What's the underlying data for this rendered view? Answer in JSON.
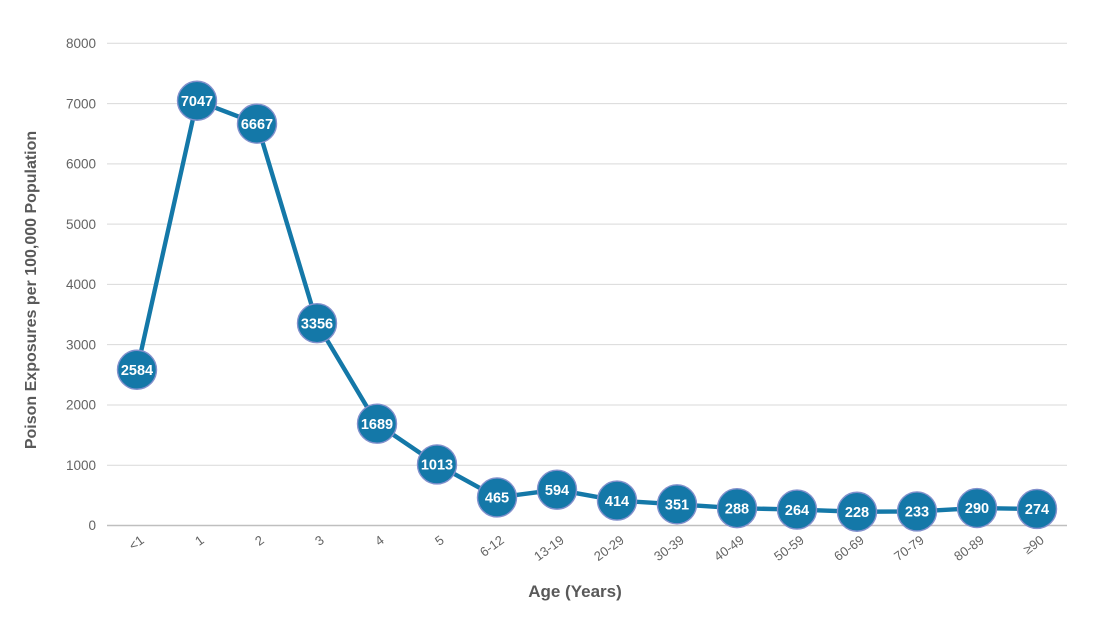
{
  "chart_data": {
    "type": "line",
    "title": "",
    "categories": [
      "<1",
      "1",
      "2",
      "3",
      "4",
      "5",
      "6-12",
      "13-19",
      "20-29",
      "30-39",
      "40-49",
      "50-59",
      "60-69",
      "70-79",
      "80-89",
      "≥90"
    ],
    "values": [
      2584,
      7047,
      6667,
      3356,
      1689,
      1013,
      465,
      594,
      414,
      351,
      288,
      264,
      228,
      233,
      290,
      274
    ],
    "xlabel": "Age (Years)",
    "ylabel": "Poison Exposures per 100,000 Population",
    "ylim": [
      0,
      8000
    ],
    "yticks": [
      0,
      1000,
      2000,
      3000,
      4000,
      5000,
      6000,
      7000,
      8000
    ],
    "grid": "horizontal",
    "legend": "none",
    "data_labels": "inside-markers",
    "x_tick_rotation_deg": -36,
    "colors": {
      "line": "#1478A8",
      "marker_fill": "#1478A8",
      "marker_border": "#8290CC",
      "data_label_text": "#FFFFFF",
      "gridline": "#D9D9D9",
      "axis_line": "#BFBFBF",
      "tick_text": "#636363",
      "axis_title_text": "#595959",
      "background": "#FFFFFF"
    }
  }
}
